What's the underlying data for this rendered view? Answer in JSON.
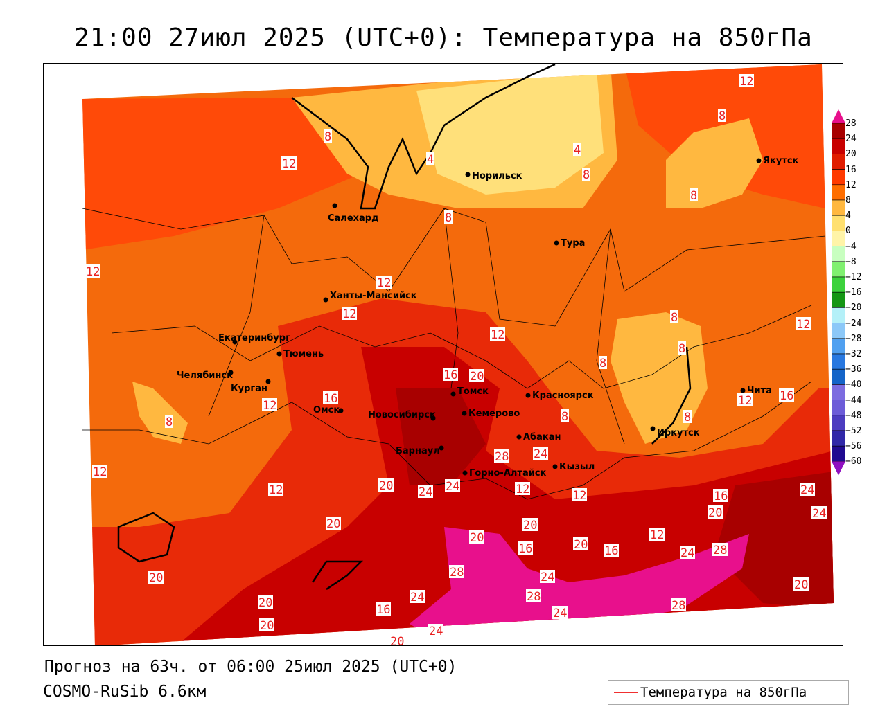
{
  "title": "21:00 27июл 2025 (UTC+0): Температура на 850гПа",
  "forecast": "Прогноз на 63ч. от 06:00 25июл 2025 (UTC+0)",
  "model": "COSMO-RuSib 6.6км",
  "legend": {
    "label": "Температура на 850гПа",
    "line_color": "#f03030"
  },
  "colorbar": {
    "labels": [
      "28",
      "24",
      "20",
      "16",
      "12",
      "8",
      "4",
      "0",
      "−4",
      "−8",
      "−12",
      "−16",
      "−20",
      "−24",
      "−28",
      "−32",
      "−36",
      "−40",
      "−44",
      "−48",
      "−52",
      "−56",
      "−60"
    ],
    "colors": [
      "#a80000",
      "#c80000",
      "#e01c00",
      "#ff3a00",
      "#ff6e00",
      "#ffb840",
      "#ffe070",
      "#fff4a8",
      "#c8ffc0",
      "#80f070",
      "#3cd23c",
      "#149614",
      "#b4f0f8",
      "#8cc8f8",
      "#50a0f0",
      "#2878e0",
      "#1464c8",
      "#7c6ce0",
      "#6c5cd8",
      "#4c3cc0",
      "#3028a8",
      "#200a90"
    ],
    "over_color": "#e8108c",
    "under_color": "#9010c0"
  },
  "cities": [
    "Норильск",
    "Салехард",
    "Якутск",
    "Тура",
    "Ханты-Мансийск",
    "Екатеринбург",
    "Тюмень",
    "Челябинск",
    "Курган",
    "Омск",
    "Новосибирск",
    "Томск",
    "Кемерово",
    "Красноярск",
    "Абакан",
    "Барнаул",
    "Горно-Алтайск",
    "Кызыл",
    "Иркутск",
    "Чита"
  ],
  "contour_labels": [
    "12",
    "8",
    "12",
    "8",
    "4",
    "4",
    "8",
    "8",
    "8",
    "12",
    "12",
    "12",
    "12",
    "12",
    "8",
    "8",
    "8",
    "12",
    "16",
    "16",
    "20",
    "12",
    "8",
    "8",
    "12",
    "16",
    "8",
    "20",
    "24",
    "24",
    "12",
    "12",
    "12",
    "16",
    "20",
    "24",
    "24",
    "20",
    "20",
    "20",
    "16",
    "16",
    "20",
    "12",
    "24",
    "28",
    "28",
    "28",
    "24",
    "24",
    "28",
    "20",
    "20",
    "16",
    "20",
    "20",
    "20",
    "24",
    "24",
    "28",
    "24"
  ]
}
